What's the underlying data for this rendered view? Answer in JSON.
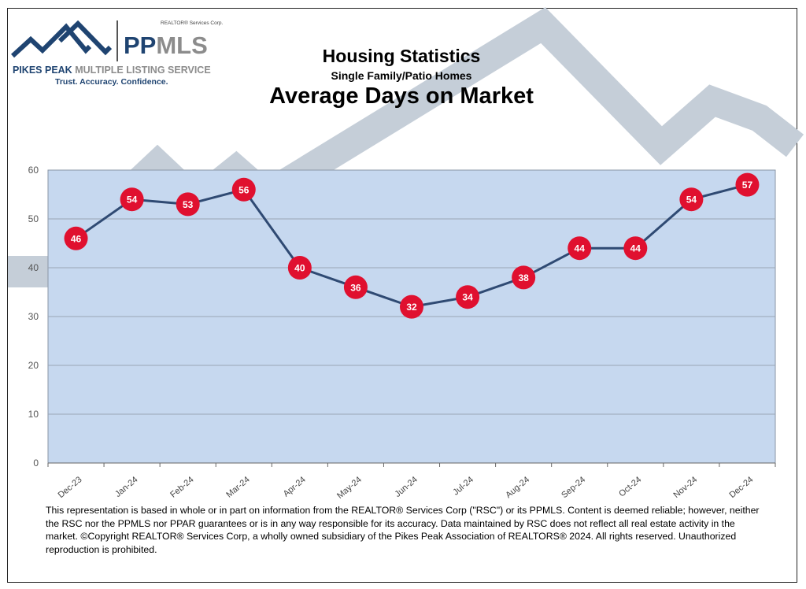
{
  "logo": {
    "corp": "REALTOR® Services Corp.",
    "brand_dark": "PP",
    "brand_light": "MLS",
    "name_dark": "PIKES PEAK",
    "name_light": "MULTIPLE LISTING SERVICE",
    "tagline": "Trust. Accuracy. Confidence."
  },
  "header": {
    "title": "Housing Statistics",
    "subtitle": "Single Family/Patio Homes",
    "chart_title": "Average Days on Market"
  },
  "chart_data": {
    "type": "line",
    "title": "Average Days on Market",
    "categories": [
      "Dec-23",
      "Jan-24",
      "Feb-24",
      "Mar-24",
      "Apr-24",
      "May-24",
      "Jun-24",
      "Jul-24",
      "Aug-24",
      "Sep-24",
      "Oct-24",
      "Nov-24",
      "Dec-24"
    ],
    "values": [
      46,
      54,
      53,
      56,
      40,
      36,
      32,
      34,
      38,
      44,
      44,
      54,
      57
    ],
    "ylim": [
      0,
      60
    ],
    "yticks": [
      0,
      10,
      20,
      30,
      40,
      50,
      60
    ],
    "grid": true,
    "data_labels": true,
    "colors": {
      "line": "#2f4a73",
      "marker": "#e0102f",
      "plot_bg": "#c6d8ef",
      "grid": "#9aa6b5"
    }
  },
  "footer": {
    "disclaimer": "This representation is based in whole or in part on information from the REALTOR® Services Corp (\"RSC\") or its PPMLS. Content is deemed reliable; however, neither the RSC nor the PPMLS nor PPAR guarantees or is in any way responsible for its accuracy. Data maintained by RSC does not reflect all real estate activity in the market. ©Copyright REALTOR® Services Corp, a wholly owned subsidiary of the Pikes Peak Association of REALTORS® 2024. All rights reserved. Unauthorized reproduction is prohibited."
  }
}
